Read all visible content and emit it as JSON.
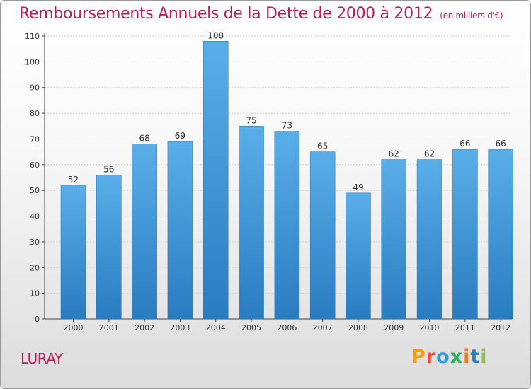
{
  "header": {
    "title": "Remboursements Annuels de la Dette de 2000 à 2012",
    "unit": "(en milliers d'€)"
  },
  "footer": {
    "commune": "LURAY",
    "brand": "Proxiti"
  },
  "colors": {
    "title": "#c2185b",
    "bar_top": "#5aaee8",
    "bar_bottom": "#2a7cc0"
  },
  "chart_data": {
    "type": "bar",
    "categories": [
      "2000",
      "2001",
      "2002",
      "2003",
      "2004",
      "2005",
      "2006",
      "2007",
      "2008",
      "2009",
      "2010",
      "2011",
      "2012"
    ],
    "values": [
      52,
      56,
      68,
      69,
      108,
      75,
      73,
      65,
      49,
      62,
      62,
      66,
      66
    ],
    "ylim": [
      0,
      110
    ],
    "yticks": [
      0,
      10,
      20,
      30,
      40,
      50,
      60,
      70,
      80,
      90,
      100,
      110
    ],
    "grid": true
  }
}
